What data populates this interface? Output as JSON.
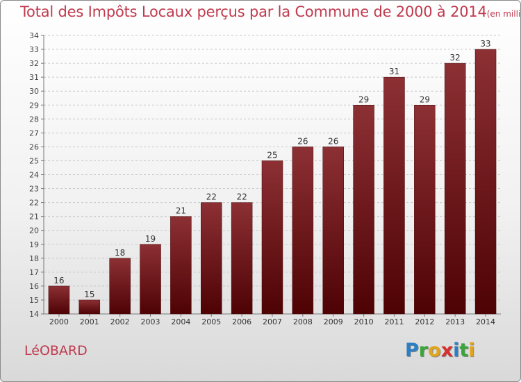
{
  "chart_data": {
    "type": "bar",
    "title": "Total des Impôts Locaux perçus par la Commune de 2000 à 2014",
    "subtitle": "(en milliers d'€)",
    "categories": [
      "2000",
      "2001",
      "2002",
      "2003",
      "2004",
      "2005",
      "2006",
      "2007",
      "2008",
      "2009",
      "2010",
      "2011",
      "2012",
      "2013",
      "2014"
    ],
    "values": [
      16,
      15,
      18,
      19,
      21,
      22,
      22,
      25,
      26,
      26,
      29,
      31,
      29,
      32,
      33
    ],
    "ylim": [
      14,
      34
    ],
    "yticks": [
      14,
      15,
      16,
      17,
      18,
      19,
      20,
      21,
      22,
      23,
      24,
      25,
      26,
      27,
      28,
      29,
      30,
      31,
      32,
      33,
      34
    ],
    "xlabel": "",
    "ylabel": "",
    "grid": true,
    "bar_color": "#6e1518"
  },
  "commune": "LéOBARD",
  "logo": {
    "letters": [
      "P",
      "r",
      "o",
      "x",
      "i",
      "t",
      "i"
    ],
    "colors": [
      "#2b7fc4",
      "#3aa63a",
      "#e0a51d",
      "#d93030",
      "#2b7fc4",
      "#3aa63a",
      "#e0a51d"
    ]
  }
}
